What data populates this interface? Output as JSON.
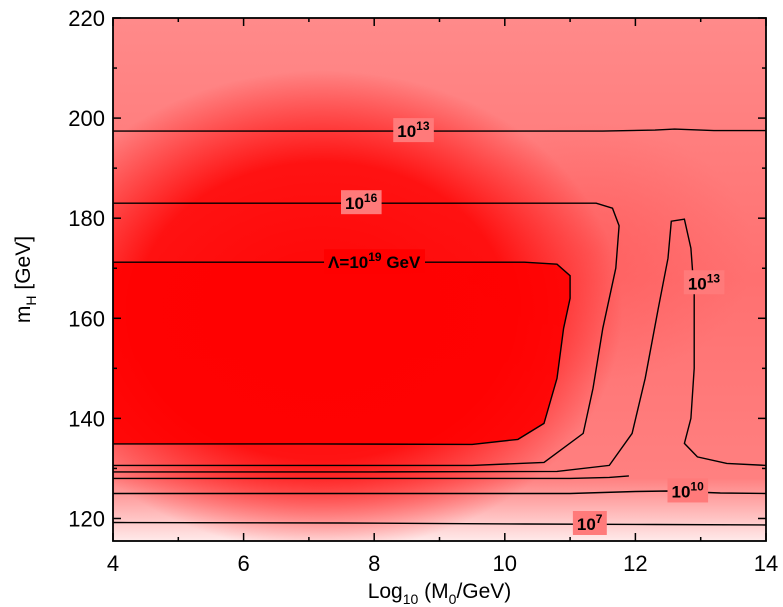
{
  "chart_data": {
    "type": "heatmap",
    "title": "",
    "xlabel": {
      "main": "Log",
      "sub": "10",
      "rest_a": " (M",
      "sub2": "0",
      "rest_b": "/GeV)"
    },
    "ylabel": {
      "main": "m",
      "sub": "H",
      "rest": " [GeV]"
    },
    "xlim": [
      4,
      14
    ],
    "ylim": [
      115.5,
      220
    ],
    "x_ticks": [
      "4",
      "6",
      "8",
      "10",
      "12",
      "14"
    ],
    "y_ticks": [
      "120",
      "140",
      "160",
      "180",
      "200",
      "220"
    ],
    "grid": false,
    "colors": {
      "high": "#ff0000",
      "mid": "#ff8080",
      "low": "#ffe6e6",
      "line": "#000000"
    },
    "contours": [
      {
        "name": "Lambda=10^19 GeV",
        "label": {
          "main": "Λ=10",
          "sup": "19",
          "tail": " GeV"
        },
        "label_at": [
          8.0,
          171.2
        ],
        "points": [
          [
            4.0,
            171.2
          ],
          [
            6.5,
            171.2
          ],
          [
            10.3,
            171.2
          ],
          [
            10.8,
            170.8
          ],
          [
            11.0,
            168.5
          ],
          [
            11.0,
            164.0
          ],
          [
            10.9,
            158.0
          ],
          [
            10.8,
            148.0
          ],
          [
            10.6,
            139.0
          ],
          [
            10.2,
            135.8
          ],
          [
            9.5,
            134.8
          ],
          [
            7.0,
            134.9
          ],
          [
            4.0,
            134.9
          ]
        ]
      },
      {
        "name": "10^16",
        "label": {
          "main": "10",
          "sup": "16"
        },
        "label_at": [
          7.8,
          183.0
        ],
        "points": [
          [
            4.0,
            183.0
          ],
          [
            7.5,
            183.0
          ],
          [
            11.4,
            183.0
          ],
          [
            11.65,
            182.0
          ],
          [
            11.75,
            178.5
          ],
          [
            11.7,
            170.0
          ],
          [
            11.5,
            158.0
          ],
          [
            11.35,
            146.0
          ],
          [
            11.2,
            137.0
          ],
          [
            10.6,
            131.2
          ],
          [
            9.5,
            130.6
          ],
          [
            7.0,
            130.6
          ],
          [
            4.0,
            130.6
          ]
        ]
      },
      {
        "name": "10^13 outer",
        "label": {
          "main": "10",
          "sup": "13"
        },
        "label_at": [
          8.6,
          197.4
        ],
        "points": [
          [
            4.0,
            197.4
          ],
          [
            7.5,
            197.4
          ],
          [
            10.0,
            197.4
          ],
          [
            11.5,
            197.4
          ],
          [
            12.3,
            197.6
          ],
          [
            12.6,
            197.8
          ],
          [
            13.2,
            197.5
          ],
          [
            14.0,
            197.5
          ]
        ]
      },
      {
        "name": "10^13 inner",
        "label": {
          "main": "10",
          "sup": "13"
        },
        "label_at": [
          13.05,
          167.0
        ],
        "points": [
          [
            4.0,
            129.3
          ],
          [
            8.0,
            129.3
          ],
          [
            10.8,
            129.4
          ],
          [
            11.6,
            130.6
          ],
          [
            11.95,
            137.0
          ],
          [
            12.15,
            148.0
          ],
          [
            12.35,
            162.0
          ],
          [
            12.5,
            172.0
          ],
          [
            12.55,
            179.4
          ],
          [
            12.75,
            179.8
          ],
          [
            12.85,
            174.0
          ],
          [
            12.9,
            165.0
          ],
          [
            12.9,
            150.0
          ],
          [
            12.85,
            140.0
          ],
          [
            12.75,
            135.0
          ],
          [
            12.95,
            132.3
          ],
          [
            13.4,
            131.0
          ],
          [
            14.0,
            130.6
          ]
        ]
      },
      {
        "name": "10^13 lower",
        "points": [
          [
            4.0,
            128.0
          ],
          [
            8.0,
            128.0
          ],
          [
            11.0,
            128.0
          ],
          [
            11.6,
            128.2
          ],
          [
            11.9,
            128.5
          ]
        ]
      },
      {
        "name": "10^10",
        "label": {
          "main": "10",
          "sup": "10"
        },
        "label_at": [
          12.8,
          125.4
        ],
        "points": [
          [
            4.0,
            125.0
          ],
          [
            8.0,
            125.0
          ],
          [
            11.0,
            125.0
          ],
          [
            12.0,
            125.4
          ],
          [
            12.5,
            125.5
          ],
          [
            13.3,
            125.1
          ],
          [
            14.0,
            125.0
          ]
        ]
      },
      {
        "name": "10^7",
        "label": {
          "main": "10",
          "sup": "7"
        },
        "label_at": [
          11.3,
          118.9
        ],
        "points": [
          [
            4.0,
            119.2
          ],
          [
            7.5,
            119.1
          ],
          [
            10.3,
            118.9
          ],
          [
            12.3,
            118.8
          ],
          [
            14.0,
            118.7
          ]
        ]
      }
    ]
  }
}
